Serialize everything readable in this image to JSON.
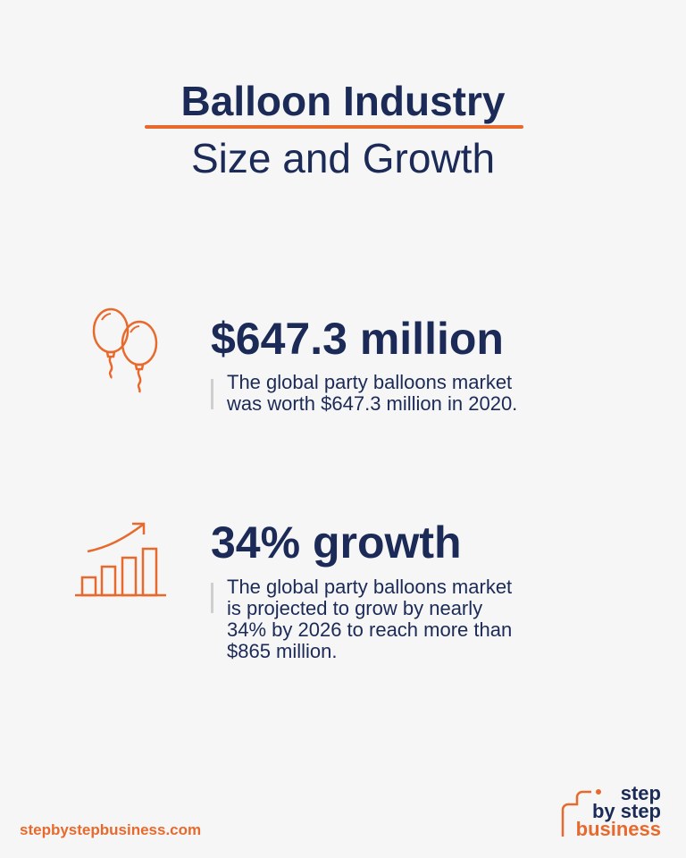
{
  "header": {
    "title_line1": "Balloon Industry",
    "title_line2": "Size and Growth"
  },
  "stats": [
    {
      "icon": "balloons-icon",
      "headline": "$647.3 million",
      "description": [
        "The global party balloons market",
        "was worth $647.3 million in 2020."
      ]
    },
    {
      "icon": "growth-chart-icon",
      "headline": "34% growth",
      "description": [
        "The global party balloons market",
        "is projected to grow by nearly",
        "34% by 2026 to reach more than",
        "$865 million."
      ]
    }
  ],
  "footer": {
    "website": "stepbystepbusiness.com",
    "logo": [
      "step",
      "by step",
      "business"
    ]
  },
  "colors": {
    "accent": "#e8692c",
    "navy": "#1b2a57",
    "background": "#f6f6f6"
  }
}
